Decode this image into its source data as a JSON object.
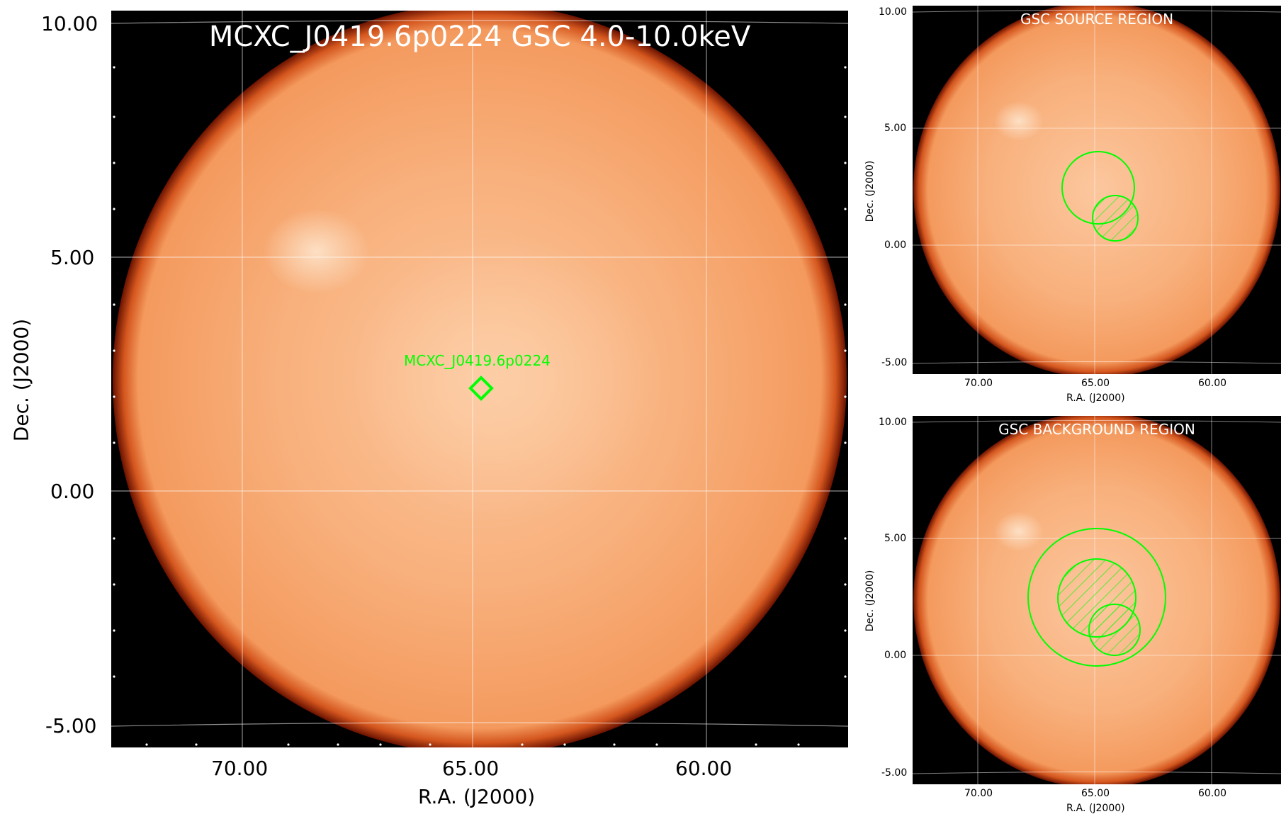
{
  "main": {
    "title": "MCXC_J0419.6p0224 GSC 4.0-10.0keV",
    "source_label": "MCXC_J0419.6p0224",
    "xlabel": "R.A. (J2000)",
    "ylabel": "Dec. (J2000)",
    "xticks": [
      "70.00",
      "65.00",
      "60.00"
    ],
    "yticks": [
      "10.00",
      "5.00",
      "0.00",
      "-5.00"
    ]
  },
  "source_panel": {
    "title": "GSC SOURCE REGION",
    "xlabel": "R.A. (J2000)",
    "ylabel": "Dec. (J2000)",
    "xticks": [
      "70.00",
      "65.00",
      "60.00"
    ],
    "yticks": [
      "10.00",
      "5.00",
      "0.00",
      "-5.00"
    ]
  },
  "background_panel": {
    "title": "GSC BACKGROUND REGION",
    "xlabel": "R.A. (J2000)",
    "ylabel": "Dec. (J2000)",
    "xticks": [
      "70.00",
      "65.00",
      "60.00"
    ],
    "yticks": [
      "10.00",
      "5.00",
      "0.00",
      "-5.00"
    ]
  },
  "colors": {
    "sky": "#f6a36a",
    "sky_edge": "#b2340a",
    "background": "#000000",
    "region": "#00ff00",
    "text_on_image": "#ffffff"
  }
}
